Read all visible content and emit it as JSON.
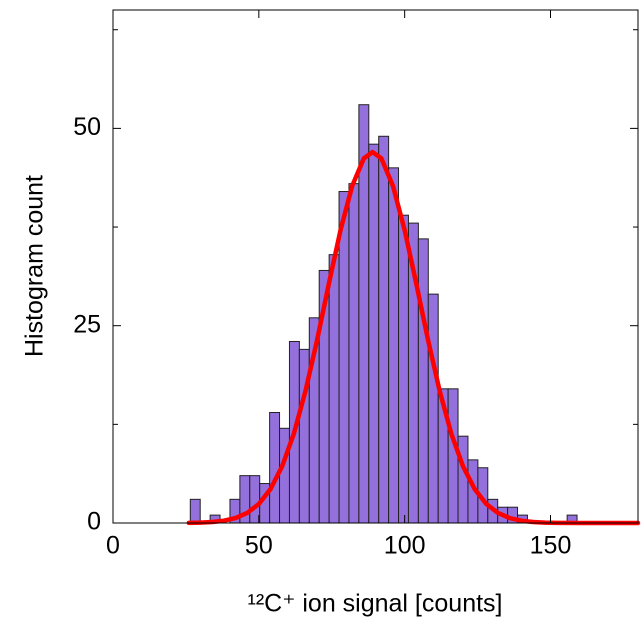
{
  "chart_data": {
    "type": "histogram",
    "x_label": "¹²C⁺ ion signal [counts]",
    "y_label": "Histogram count",
    "bins": [
      26.5,
      29.9,
      33.3,
      36.7,
      40.1,
      43.5,
      46.9,
      50.3,
      53.7,
      57.1,
      60.5,
      63.9,
      67.3,
      70.7,
      74.1,
      77.5,
      80.9,
      84.3,
      87.7,
      91.1,
      94.5,
      97.9,
      101.3,
      104.7,
      108.1,
      111.5,
      114.9,
      118.3,
      121.7,
      125.1,
      128.5,
      131.9,
      135.3,
      138.7,
      142.1,
      145.5,
      148.9,
      152.3,
      155.7,
      159.1
    ],
    "values": [
      3,
      0,
      1,
      0,
      3,
      6,
      6,
      5,
      14,
      12,
      23,
      22,
      26,
      32,
      34,
      42,
      43,
      53,
      48,
      49,
      45,
      39,
      38,
      36,
      29,
      17,
      17,
      11,
      8,
      7,
      3,
      2,
      2,
      1,
      0,
      0,
      0,
      0,
      1
    ],
    "color": "#9370db",
    "edge_color": "#222222",
    "fit": {
      "color": "#ff0000",
      "x": [
        26,
        30,
        34,
        38,
        42,
        46,
        50,
        54,
        58,
        62,
        66,
        70,
        74,
        78,
        82,
        86,
        89,
        92,
        96,
        100,
        104,
        108,
        112,
        116,
        120,
        124,
        128,
        132,
        136,
        140,
        144,
        148,
        152,
        160,
        170,
        180
      ],
      "values": [
        0.02,
        0.05,
        0.13,
        0.29,
        0.63,
        1.27,
        2.41,
        4.3,
        7.19,
        11.31,
        16.73,
        23.22,
        30.3,
        37.1,
        42.7,
        46.2,
        47,
        46.2,
        42.7,
        37.1,
        30.3,
        23.22,
        16.73,
        11.31,
        7.19,
        4.3,
        2.41,
        1.27,
        0.63,
        0.29,
        0.13,
        0.05,
        0.02,
        0,
        0,
        0
      ]
    },
    "xlim": [
      0,
      180
    ],
    "ylim": [
      0,
      65
    ],
    "xticks": [
      0,
      50,
      100,
      150
    ],
    "yticks": [
      0,
      25,
      50
    ],
    "yminor_ticks": [
      12.5,
      37.5,
      62.5
    ]
  }
}
